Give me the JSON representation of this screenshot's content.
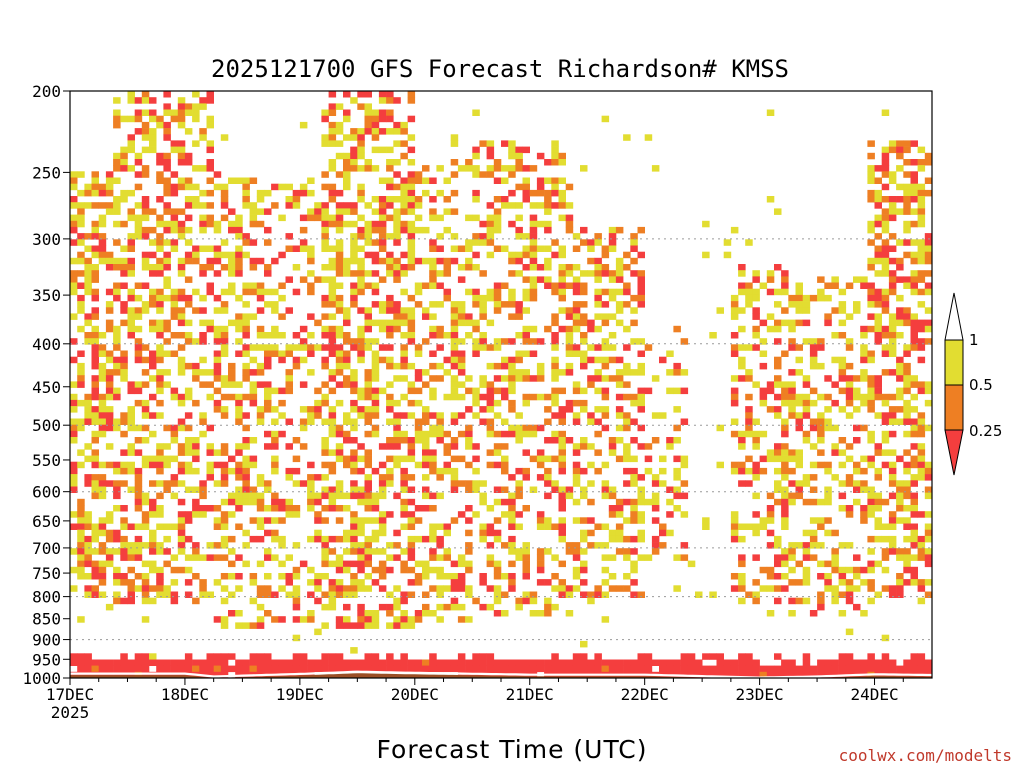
{
  "title": "2025121700 GFS Forecast Richardson# KMSS",
  "xlabel": "Forecast Time (UTC)",
  "credit": "coolwx.com/modelts",
  "colors": {
    "below_0_25": "#f43e3e",
    "0_25_to_0_5": "#ee7f23",
    "0_5_to_1": "#e2dd31",
    "ground": "#9b4f25",
    "background": "#ffffff"
  },
  "chart_data": {
    "type": "heatmap",
    "title": "2025121700 GFS Forecast Richardson# KMSS",
    "xlabel": "Forecast Time (UTC)",
    "ylabel": "",
    "y_scale": "log (pressure, inverted)",
    "ylim": [
      1000,
      200
    ],
    "yticks": [
      200,
      250,
      300,
      350,
      400,
      450,
      500,
      550,
      600,
      650,
      700,
      750,
      800,
      850,
      900,
      950,
      1000
    ],
    "ytick_labels": [
      "200",
      "250",
      "300",
      "350",
      "400",
      "450",
      "500",
      "550",
      "600",
      "650",
      "700",
      "750",
      "800",
      "850",
      "900",
      "950",
      "1000"
    ],
    "grid_levels": [
      300,
      400,
      500,
      600,
      700,
      800,
      900
    ],
    "x_start": "2025-12-17 00Z",
    "x_end": "2025-12-24 12Z",
    "xticks": [
      "17DEC",
      "18DEC",
      "19DEC",
      "20DEC",
      "21DEC",
      "22DEC",
      "23DEC",
      "24DEC"
    ],
    "xtick_sub": "2025",
    "colorbar": {
      "labels": [
        "1",
        "0.5",
        "0.25"
      ],
      "bins": [
        {
          "range": "<0.25",
          "color": "#f43e3e"
        },
        {
          "range": "0.25-0.5",
          "color": "#ee7f23"
        },
        {
          "range": "0.5-1",
          "color": "#e2dd31"
        },
        {
          "range": ">1",
          "color": "#ffffff"
        }
      ]
    },
    "surface_pressure_approx": [
      {
        "time": "17DEC 00Z",
        "p": 992
      },
      {
        "time": "18DEC 00Z",
        "p": 992
      },
      {
        "time": "18DEC 06Z",
        "p": 1000
      },
      {
        "time": "19DEC 00Z",
        "p": 993
      },
      {
        "time": "19DEC 12Z",
        "p": 987
      },
      {
        "time": "20DEC 00Z",
        "p": 990
      },
      {
        "time": "21DEC 00Z",
        "p": 995
      },
      {
        "time": "22DEC 00Z",
        "p": 995
      },
      {
        "time": "23DEC 00Z",
        "p": 1003
      },
      {
        "time": "23DEC 12Z",
        "p": 1000
      },
      {
        "time": "24DEC 00Z",
        "p": 994
      },
      {
        "time": "24DEC 12Z",
        "p": 996
      }
    ]
  }
}
